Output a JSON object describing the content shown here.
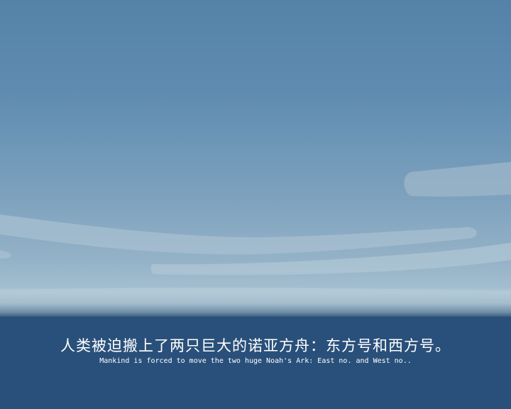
{
  "subtitle": {
    "chinese": "人类被迫搬上了两只巨大的诺亚方舟：东方号和西方号。",
    "english": "Mankind is forced to move the two huge Noah's Ark: East no. and West no.."
  },
  "colors": {
    "sky_top": "#5582a8",
    "sky_horizon": "#a4bfd0",
    "subtitle_bar": "#29507a",
    "cloud": "#b6ccd9",
    "text": "#ffffff"
  }
}
